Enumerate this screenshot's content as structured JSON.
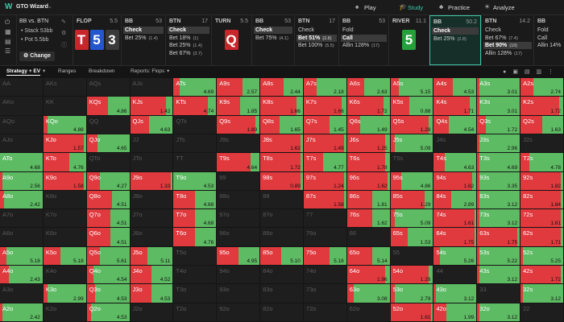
{
  "header": {
    "app": "GTO Wizard",
    "nav": [
      "Play",
      "Study",
      "Practice",
      "Analyze"
    ]
  },
  "spot": {
    "matchup": "BB vs. BTN",
    "stack": "Stack 53bb",
    "pot": "Pot 5.5bb",
    "button": "Change"
  },
  "line": [
    {
      "kind": "street",
      "name": "FLOP",
      "pot": "5.5",
      "cards": [
        {
          "rank": "T",
          "color": "#c8262b"
        },
        {
          "rank": "5",
          "color": "#2456d0"
        },
        {
          "rank": "3",
          "color": "#3a3a3a"
        }
      ]
    },
    {
      "kind": "player",
      "name": "BB",
      "stack": "53",
      "options": [
        {
          "text": "Check",
          "on": true
        },
        {
          "text": "Bet 25%",
          "size": "(1.4)"
        }
      ]
    },
    {
      "kind": "player",
      "name": "BTN",
      "stack": "17",
      "options": [
        {
          "text": "Check",
          "on": true
        },
        {
          "text": "Bet 18%",
          "size": "(1)"
        },
        {
          "text": "Bet 25%",
          "size": "(1.4)"
        },
        {
          "text": "Bet 67%",
          "size": "(3.7)"
        }
      ]
    },
    {
      "kind": "street",
      "name": "TURN",
      "pot": "5.5",
      "cards": [
        {
          "rank": "Q",
          "color": "#c8262b"
        }
      ]
    },
    {
      "kind": "player",
      "name": "BB",
      "stack": "53",
      "options": [
        {
          "text": "Check",
          "on": true
        },
        {
          "text": "Bet 75%",
          "size": "(4.1)"
        }
      ]
    },
    {
      "kind": "player",
      "name": "BTN",
      "stack": "17",
      "options": [
        {
          "text": "Check"
        },
        {
          "text": "Bet 51%",
          "size": "(2.8)",
          "on": true
        },
        {
          "text": "Bet 100%",
          "size": "(5.5)"
        }
      ]
    },
    {
      "kind": "player",
      "name": "BB",
      "stack": "53",
      "options": [
        {
          "text": "Fold"
        },
        {
          "text": "Call",
          "on": true
        },
        {
          "text": "Allin 128%",
          "size": "(17)"
        }
      ]
    },
    {
      "kind": "street",
      "name": "RIVER",
      "pot": "11.1",
      "cards": [
        {
          "rank": "5",
          "color": "#25a03a"
        }
      ]
    },
    {
      "kind": "player",
      "name": "BB",
      "stack": "50.2",
      "active": true,
      "options": [
        {
          "text": "Check",
          "on": true
        },
        {
          "text": "Bet 25%",
          "size": "(2.8)"
        }
      ]
    },
    {
      "kind": "player",
      "name": "BTN",
      "stack": "14.2",
      "options": [
        {
          "text": "Check"
        },
        {
          "text": "Bet 67%",
          "size": "(7.4)"
        },
        {
          "text": "Bet 90%",
          "size": "(10)",
          "on": true
        },
        {
          "text": "Allin 128%",
          "size": "(17)"
        }
      ]
    },
    {
      "kind": "player",
      "name": "BB",
      "stack": "",
      "options": [
        {
          "text": "Fold"
        },
        {
          "text": "Call"
        },
        {
          "text": "Allin 14%"
        }
      ]
    }
  ],
  "tabs": [
    "Strategy + EV",
    "Ranges",
    "Breakdown",
    "Reports: Flops"
  ],
  "grid": {
    "bet_color": "#e0393e",
    "check_color": "#5dbb63",
    "rows": [
      [
        [
          "AA"
        ],
        [
          "AKs"
        ],
        [
          "AQs"
        ],
        [
          "AJs"
        ],
        [
          "ATs",
          "4.69",
          15
        ],
        [
          "A9s",
          "2.57",
          60
        ],
        [
          "A8s",
          "2.44",
          55
        ],
        [
          "A7s",
          "2.18",
          30
        ],
        [
          "A6s",
          "2.63",
          40
        ],
        [
          "A5s",
          "5.15",
          20
        ],
        [
          "A4s",
          "4.53",
          45
        ],
        [
          "A3s",
          "3.01",
          5
        ],
        [
          "A2s",
          "2.74",
          30
        ]
      ],
      [
        [
          "AKo"
        ],
        [
          "KK"
        ],
        [
          "KQs",
          "4.86",
          50
        ],
        [
          "KJs",
          "1.42",
          85
        ],
        [
          "KTs",
          "4.74",
          80
        ],
        [
          "K9s",
          "1.85",
          55
        ],
        [
          "K8s",
          "1.66",
          85
        ],
        [
          "K7s",
          "1.66",
          90
        ],
        [
          "K6s",
          "1.72",
          85
        ],
        [
          "K5s",
          "0.88",
          45
        ],
        [
          "K4s",
          "1.71",
          85
        ],
        [
          "K3s",
          "3.01",
          5
        ],
        [
          "K2s",
          "1.72",
          90
        ]
      ],
      [
        [
          "AQo"
        ],
        [
          "KQo",
          "4.88",
          10
        ],
        [
          "QQ"
        ],
        [
          "QJs",
          "4.63",
          45
        ],
        [
          "QTs"
        ],
        [
          "Q9s",
          "1.89",
          90
        ],
        [
          "Q8s",
          "1.65",
          45
        ],
        [
          "Q7s",
          "1.45",
          60
        ],
        [
          "Q6s",
          "1.49",
          30
        ],
        [
          "Q5s",
          "1.28",
          90
        ],
        [
          "Q4s",
          "4.54",
          35
        ],
        [
          "Q3s",
          "1.72",
          20
        ],
        [
          "Q2s",
          "1.63",
          50
        ]
      ],
      [
        [
          "AJo"
        ],
        [
          "KJo",
          "1.57",
          95
        ],
        [
          "QJo",
          "4.65",
          25
        ],
        [
          "JJ"
        ],
        [
          "JTs"
        ],
        [
          "J9s"
        ],
        [
          "J8s",
          "1.62",
          95
        ],
        [
          "J7s",
          "1.49",
          95
        ],
        [
          "J6s",
          "1.25",
          90
        ],
        [
          "J5s",
          "5.09",
          10
        ],
        [
          "J4s"
        ],
        [
          "J3s",
          "2.96",
          5
        ],
        [
          "J2s"
        ]
      ],
      [
        [
          "ATo",
          "4.68",
          0
        ],
        [
          "KTo",
          "4.76",
          60
        ],
        [
          "QTo"
        ],
        [
          "JTo"
        ],
        [
          "TT"
        ],
        [
          "T9s",
          "4.64",
          80
        ],
        [
          "T8s",
          "1.72",
          95
        ],
        [
          "T7s",
          "4.77",
          45
        ],
        [
          "T6s",
          "1.78",
          90
        ],
        [
          "T5s"
        ],
        [
          "T4s",
          "4.63",
          25
        ],
        [
          "T3s",
          "4.69",
          5
        ],
        [
          "T2s",
          "4.78",
          20
        ]
      ],
      [
        [
          "A9o",
          "2.56",
          5
        ],
        [
          "K9o",
          "1.58",
          95
        ],
        [
          "Q9o",
          "4.27",
          30
        ],
        [
          "J9o",
          "1.33",
          95
        ],
        [
          "T9o",
          "4.53",
          0
        ],
        [
          "99"
        ],
        [
          "98s",
          "0.89",
          95
        ],
        [
          "97s",
          "1.24",
          95
        ],
        [
          "96s",
          "1.62",
          95
        ],
        [
          "95s",
          "4.86",
          25
        ],
        [
          "94s",
          "1.62",
          90
        ],
        [
          "93s",
          "3.35",
          5
        ],
        [
          "92s",
          "1.82",
          95
        ]
      ],
      [
        [
          "A8o",
          "2.42",
          10
        ],
        [
          "K8o"
        ],
        [
          "Q8o",
          "4.51",
          60
        ],
        [
          "J8o"
        ],
        [
          "T8o",
          "4.68",
          50
        ],
        [
          "98o"
        ],
        [
          "88"
        ],
        [
          "87s",
          "1.58",
          95
        ],
        [
          "86s",
          "1.81",
          60
        ],
        [
          "85s",
          "1.29",
          80
        ],
        [
          "84s",
          "2.89",
          40
        ],
        [
          "83s",
          "3.12",
          5
        ],
        [
          "82s",
          "1.84",
          95
        ]
      ],
      [
        [
          "A7o"
        ],
        [
          "K7o"
        ],
        [
          "Q7o",
          "4.51",
          55
        ],
        [
          "J7o"
        ],
        [
          "T7o",
          "4.68",
          50
        ],
        [
          "97o"
        ],
        [
          "87o"
        ],
        [
          "77"
        ],
        [
          "76s",
          "1.62",
          60
        ],
        [
          "75s",
          "5.09",
          10
        ],
        [
          "74s",
          "1.61",
          95
        ],
        [
          "73s",
          "3.12",
          5
        ],
        [
          "72s",
          "1.61",
          95
        ]
      ],
      [
        [
          "A6o"
        ],
        [
          "K6o"
        ],
        [
          "Q6o",
          "4.51",
          55
        ],
        [
          "J6o"
        ],
        [
          "T6o",
          "4.76",
          50
        ],
        [
          "96o"
        ],
        [
          "86o"
        ],
        [
          "76o"
        ],
        [
          "66"
        ],
        [
          "65s",
          "1.53",
          40
        ],
        [
          "64s",
          "1.75",
          95
        ],
        [
          "63s",
          "1.75",
          95
        ],
        [
          "62s",
          "1.71",
          95
        ]
      ],
      [
        [
          "A5o",
          "5.18",
          15
        ],
        [
          "K5o",
          "5.18",
          40
        ],
        [
          "Q5o",
          "5.61",
          30
        ],
        [
          "J5o",
          "5.11",
          40
        ],
        [
          "T5o"
        ],
        [
          "95o",
          "4.95",
          50
        ],
        [
          "85o",
          "5.10",
          50
        ],
        [
          "75o",
          "5.18",
          60
        ],
        [
          "65o",
          "5.14",
          60
        ],
        [
          "55"
        ],
        [
          "54s",
          "5.26",
          15
        ],
        [
          "53s",
          "5.22",
          5
        ],
        [
          "52s",
          "5.25",
          5
        ]
      ],
      [
        [
          "A4o",
          "2.43",
          20
        ],
        [
          "K4o"
        ],
        [
          "Q4o",
          "4.54",
          15
        ],
        [
          "J4o",
          "4.52",
          50
        ],
        [
          "T4o"
        ],
        [
          "94o"
        ],
        [
          "84o"
        ],
        [
          "74o"
        ],
        [
          "64o",
          "1.96",
          90
        ],
        [
          "54o",
          "1.28",
          90
        ],
        [
          "44"
        ],
        [
          "43s",
          "3.12",
          5
        ],
        [
          "42s",
          "1.72",
          95
        ]
      ],
      [
        [
          "A3o"
        ],
        [
          "K3o",
          "2.99",
          10
        ],
        [
          "Q3o",
          "4.53",
          20
        ],
        [
          "J3o",
          "4.53",
          50
        ],
        [
          "T3o"
        ],
        [
          "93o"
        ],
        [
          "83o"
        ],
        [
          "73o"
        ],
        [
          "63o",
          "3.08",
          15
        ],
        [
          "53o",
          "2.79",
          10
        ],
        [
          "43o",
          "3.12",
          5
        ],
        [
          "33"
        ],
        [
          "32s",
          "3.12",
          5
        ]
      ],
      [
        [
          "A2o",
          "2.42",
          5
        ],
        [
          "K2o"
        ],
        [
          "Q2o",
          "4.53",
          10
        ],
        [
          "J2o"
        ],
        [
          "T2o"
        ],
        [
          "92o"
        ],
        [
          "82o"
        ],
        [
          "72o"
        ],
        [
          "62o"
        ],
        [
          "52o",
          "1.61",
          95
        ],
        [
          "42o",
          "1.99",
          30
        ],
        [
          "32o",
          "3.12",
          5
        ],
        [
          "22"
        ]
      ]
    ]
  }
}
